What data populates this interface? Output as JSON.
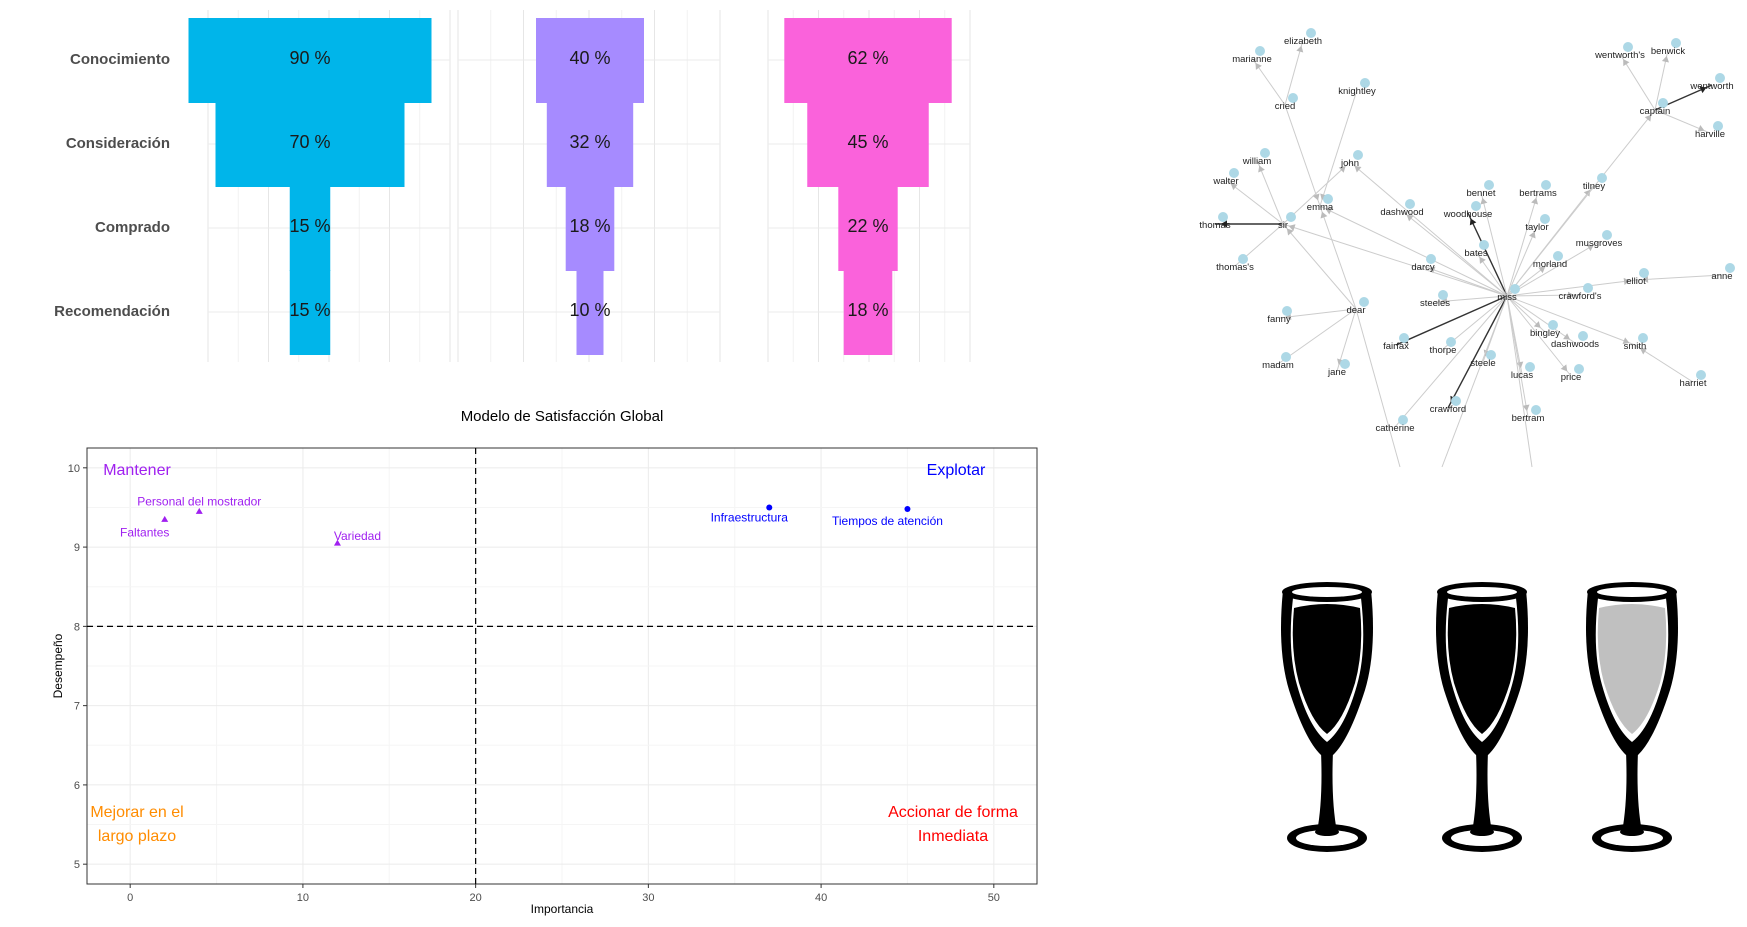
{
  "chart_data": [
    {
      "type": "bar",
      "subtype": "funnel",
      "categories": [
        "Conocimiento",
        "Consideración",
        "Comprado",
        "Recomendación"
      ],
      "panels": [
        {
          "color": "#00B5EA",
          "values": [
            90,
            70,
            15,
            15
          ],
          "labels": [
            "90 %",
            "70 %",
            "15 %",
            "15 %"
          ]
        },
        {
          "color": "#A68BFF",
          "values": [
            40,
            32,
            18,
            10
          ],
          "labels": [
            "40 %",
            "32 %",
            "18 %",
            "10 %"
          ]
        },
        {
          "color": "#FA62DB",
          "values": [
            62,
            45,
            22,
            18
          ],
          "labels": [
            "62 %",
            "45 %",
            "22 %",
            "18 %"
          ]
        }
      ],
      "grid": true
    },
    {
      "type": "scatter",
      "title": "Modelo de Satisfacción Global",
      "xlabel": "Importancia",
      "ylabel": "Desempeño",
      "xlim": [
        -2.5,
        52.5
      ],
      "ylim": [
        4.75,
        10.25
      ],
      "xticks": [
        0,
        10,
        20,
        30,
        40,
        50
      ],
      "yticks": [
        5,
        6,
        7,
        8,
        9,
        10
      ],
      "tick_labels": {
        "x": [
          "0",
          "10",
          "20",
          "30",
          "40",
          "50"
        ],
        "y": [
          "5",
          "6",
          "7",
          "8",
          "9",
          "10"
        ]
      },
      "reference_lines": {
        "x": 20,
        "y": 8
      },
      "quadrants": [
        {
          "label": "Mantener",
          "color": "#A020F0"
        },
        {
          "label": "Explotar",
          "color": "#0000FF"
        },
        {
          "label_lines": [
            "Mejorar en el",
            "largo plazo"
          ],
          "color": "#FF8C00"
        },
        {
          "label_lines": [
            "Accionar de forma",
            "Inmediata"
          ],
          "color": "#FF0000"
        }
      ],
      "series": [
        {
          "marker": "triangle",
          "color": "#A020F0",
          "points": [
            {
              "label": "Personal del mostrador",
              "x": 4,
              "y": 9.45
            },
            {
              "label": "Faltantes",
              "x": 2,
              "y": 9.35
            },
            {
              "label": "Variedad",
              "x": 12,
              "y": 9.05
            }
          ]
        },
        {
          "marker": "circle",
          "color": "#0000FF",
          "points": [
            {
              "label": "Infraestructura",
              "x": 37,
              "y": 9.5
            },
            {
              "label": "Tiempos de atención",
              "x": 45,
              "y": 9.48
            }
          ]
        }
      ],
      "grid": true
    }
  ],
  "network": {
    "words": [
      "elizabeth",
      "marianne",
      "cried",
      "knightley",
      "wentworth's",
      "benwick",
      "wentworth",
      "captain",
      "harville",
      "william",
      "walter",
      "john",
      "emma",
      "thomas",
      "sir",
      "thomas's",
      "dashwood",
      "woodhouse",
      "bennet",
      "bertrams",
      "tilney",
      "taylor",
      "musgroves",
      "bates",
      "darcy",
      "morland",
      "anne",
      "elliot",
      "steeles",
      "miss",
      "crawford's",
      "fanny",
      "dear",
      "bingley",
      "dashwoods",
      "smith",
      "fairfax",
      "thorpe",
      "steele",
      "madam",
      "jane",
      "lucas",
      "price",
      "harriet",
      "crawford",
      "bertram",
      "catherine"
    ]
  },
  "glasses": {
    "filled": 2,
    "total": 3,
    "fill_color": "#000000",
    "empty_color": "#C0C0C0"
  }
}
